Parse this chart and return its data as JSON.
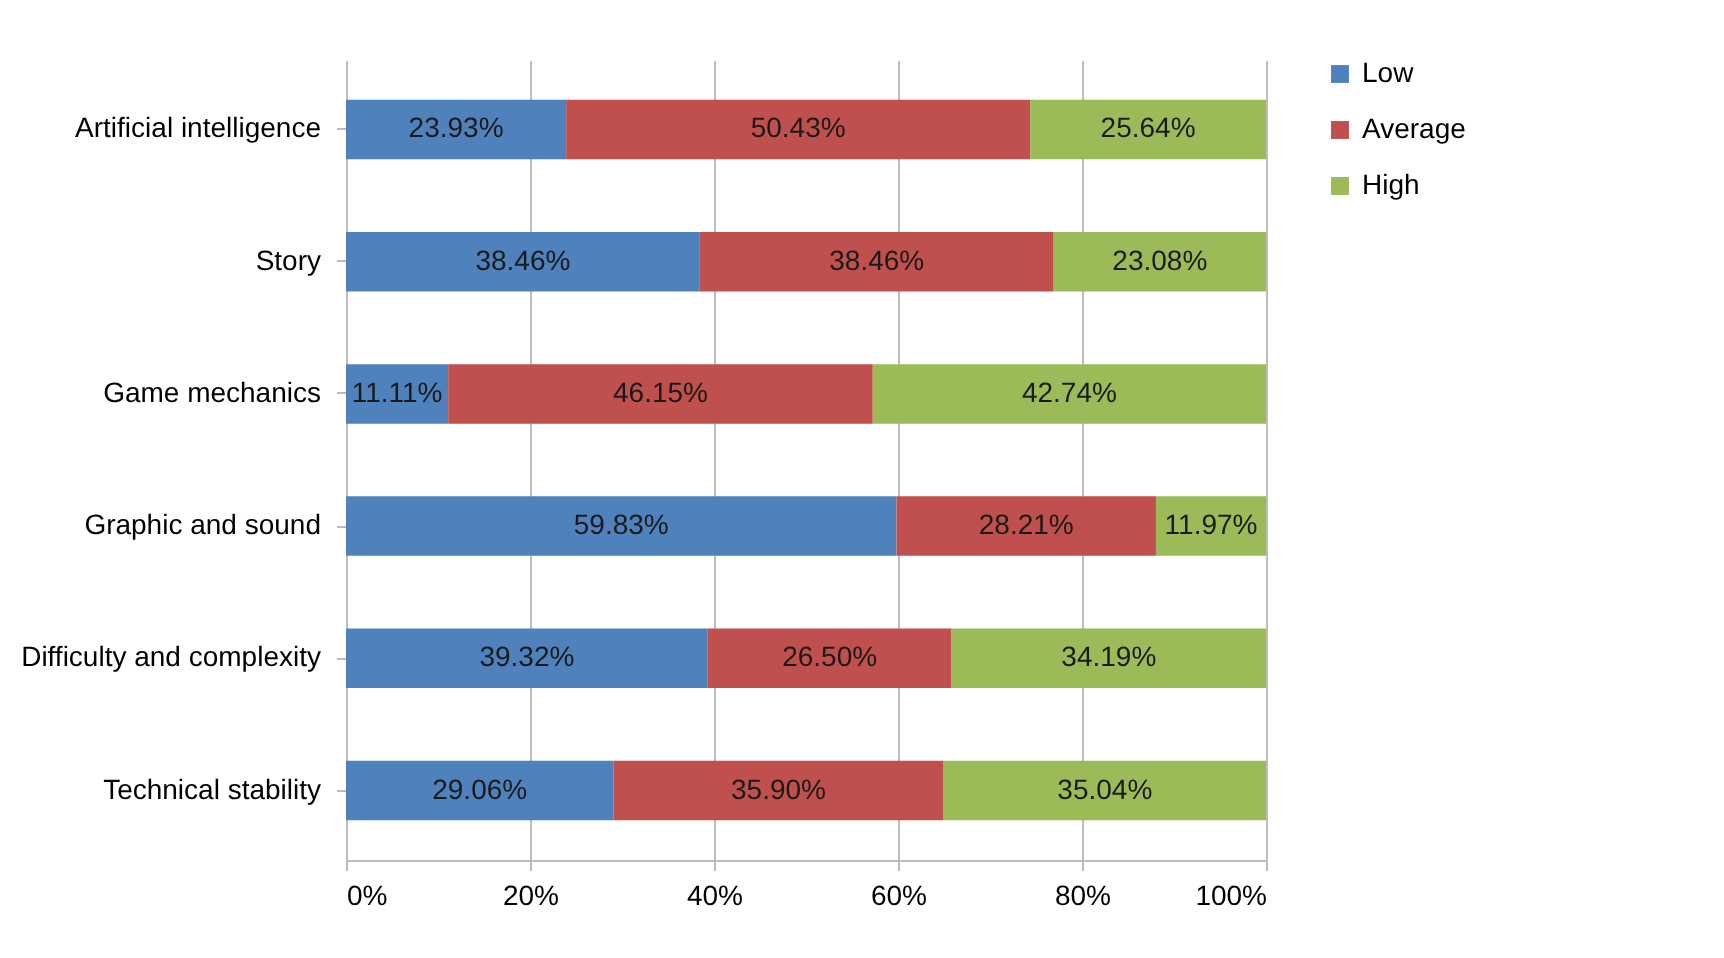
{
  "chart_data": {
    "type": "bar",
    "orientation": "horizontal",
    "stacked": true,
    "categories": [
      "Artificial intelligence",
      "Story",
      "Game mechanics",
      "Graphic and sound",
      "Difficulty and complexity",
      "Technical stability"
    ],
    "series": [
      {
        "name": "Low",
        "color": "#4f81bd",
        "values": [
          23.93,
          38.46,
          11.11,
          59.83,
          39.32,
          29.06
        ],
        "value_labels": [
          "23.93%",
          "38.46%",
          "11.11%",
          "59.83%",
          "39.32%",
          "29.06%"
        ]
      },
      {
        "name": "Average",
        "color": "#c0504d",
        "values": [
          50.43,
          38.46,
          46.15,
          28.21,
          26.5,
          35.9
        ],
        "value_labels": [
          "50.43%",
          "38.46%",
          "46.15%",
          "28.21%",
          "26.50%",
          "35.90%"
        ]
      },
      {
        "name": "High",
        "color": "#9bbb59",
        "values": [
          25.64,
          23.08,
          42.74,
          11.97,
          34.19,
          35.04
        ],
        "value_labels": [
          "25.64%",
          "23.08%",
          "42.74%",
          "11.97%",
          "34.19%",
          "35.04%"
        ]
      }
    ],
    "xlim": [
      0,
      100
    ],
    "xticks": [
      {
        "value": 0,
        "label": "0%"
      },
      {
        "value": 20,
        "label": "20%"
      },
      {
        "value": 40,
        "label": "40%"
      },
      {
        "value": 60,
        "label": "60%"
      },
      {
        "value": 80,
        "label": "80%"
      },
      {
        "value": 100,
        "label": "100%"
      }
    ],
    "grid": "x",
    "legend": "right"
  }
}
